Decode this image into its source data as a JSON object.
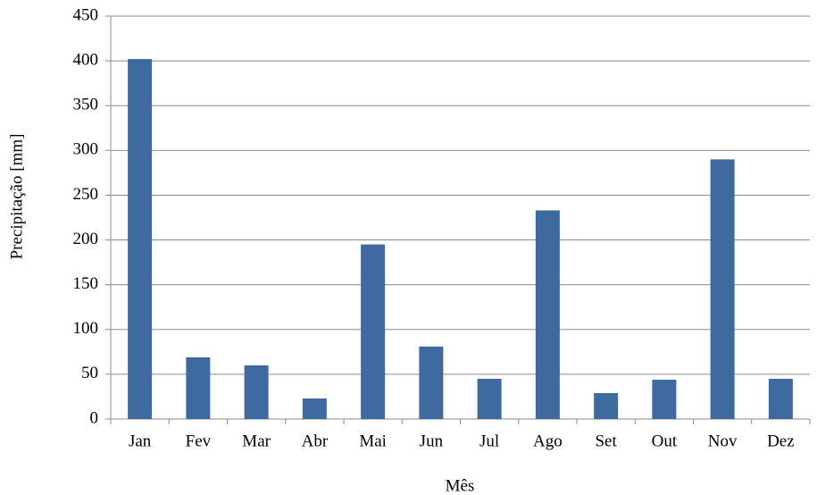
{
  "chart_data": {
    "type": "bar",
    "x_label": "Mês",
    "y_label": "Precipitação  [mm]",
    "categories": [
      "Jan",
      "Fev",
      "Mar",
      "Abr",
      "Mai",
      "Jun",
      "Jul",
      "Ago",
      "Set",
      "Out",
      "Nov",
      "Dez"
    ],
    "values": [
      402,
      69,
      60,
      23,
      195,
      81,
      45,
      233,
      29,
      44,
      290,
      45
    ],
    "color": "#3f6a9f",
    "ylim": [
      0,
      450
    ],
    "yticks": [
      0,
      50,
      100,
      150,
      200,
      250,
      300,
      350,
      400,
      450
    ],
    "grid": true
  }
}
